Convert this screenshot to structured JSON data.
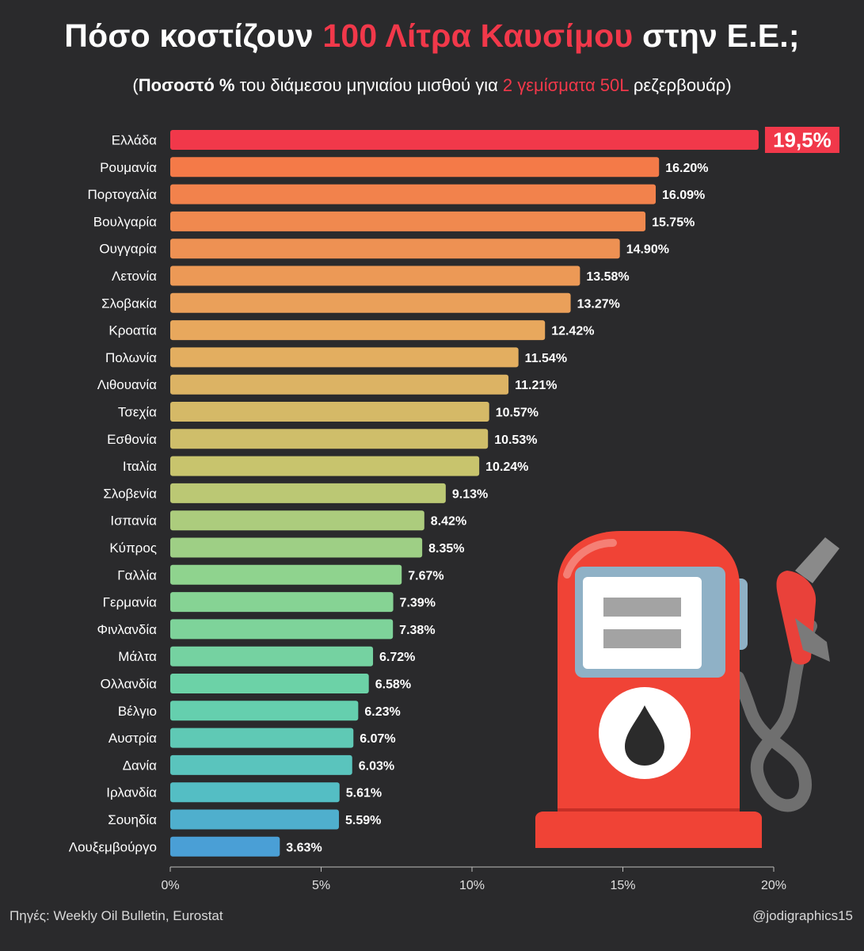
{
  "title": {
    "part1": "Πόσο κοστίζουν ",
    "highlight": "100 Λίτρα Καυσίμου",
    "part2": " στην Ε.Ε.;"
  },
  "subtitle": {
    "open": "(",
    "bold": "Ποσοστό %",
    "middle": " του διάμεσου μηνιαίου μισθού για ",
    "red": "2 γεμίσματα 50L",
    "end": " ρεζερβουάρ)"
  },
  "source": "Πηγές: Weekly Oil Bulletin, Eurostat",
  "handle": "@jodigraphics15",
  "icons": {
    "illustration": "fuel-pump-icon"
  },
  "colors": {
    "background": "#2a2a2c",
    "highlight_bar": "#f1384a",
    "title_highlight": "#f1384a",
    "gradient_top": "#f47a48",
    "gradient_mid": "#c6c56e",
    "gradient_green": "#8fd38e",
    "gradient_bottom": "#4a9fd6"
  },
  "chart_data": {
    "type": "bar",
    "orientation": "horizontal",
    "categories": [
      "Ελλάδα",
      "Ρουμανία",
      "Πορτογαλία",
      "Βουλγαρία",
      "Ουγγαρία",
      "Λετονία",
      "Σλοβακία",
      "Κροατία",
      "Πολωνία",
      "Λιθουανία",
      "Τσεχία",
      "Εσθονία",
      "Ιταλία",
      "Σλοβενία",
      "Ισπανία",
      "Κύπρος",
      "Γαλλία",
      "Γερμανία",
      "Φινλανδία",
      "Μάλτα",
      "Ολλανδία",
      "Βέλγιο",
      "Αυστρία",
      "Δανία",
      "Ιρλανδία",
      "Σουηδία",
      "Λουξεμβούργο"
    ],
    "values": [
      19.5,
      16.2,
      16.09,
      15.75,
      14.9,
      13.58,
      13.27,
      12.42,
      11.54,
      11.21,
      10.57,
      10.53,
      10.24,
      9.13,
      8.42,
      8.35,
      7.67,
      7.39,
      7.38,
      6.72,
      6.58,
      6.23,
      6.07,
      6.03,
      5.61,
      5.59,
      3.63
    ],
    "labels": [
      "19,5%",
      "16.20%",
      "16.09%",
      "15.75%",
      "14.90%",
      "13.58%",
      "13.27%",
      "12.42%",
      "11.54%",
      "11.21%",
      "10.57%",
      "10.53%",
      "10.24%",
      "9.13%",
      "8.42%",
      "8.35%",
      "7.67%",
      "7.39%",
      "7.38%",
      "6.72%",
      "6.58%",
      "6.23%",
      "6.07%",
      "6.03%",
      "5.61%",
      "5.59%",
      "3.63%"
    ],
    "xlim": [
      0,
      20
    ],
    "xticks": [
      "0%",
      "5%",
      "10%",
      "15%",
      "20%"
    ],
    "xtick_values": [
      0,
      5,
      10,
      15,
      20
    ],
    "highlight_index": 0,
    "grid": false
  }
}
